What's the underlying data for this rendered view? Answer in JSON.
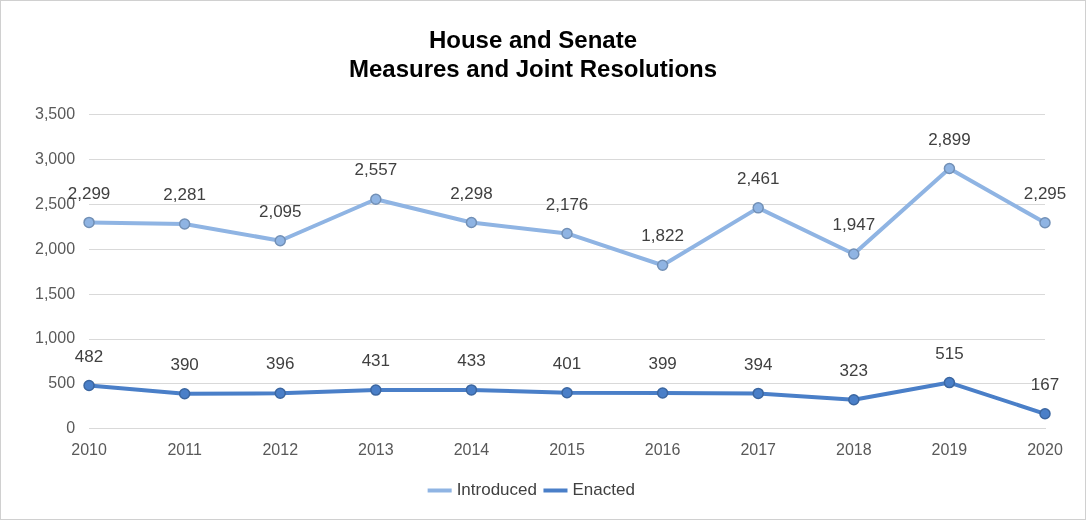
{
  "chart_data": {
    "type": "line",
    "title": "House and Senate\nMeasures and Joint Resolutions",
    "categories": [
      "2010",
      "2011",
      "2012",
      "2013",
      "2014",
      "2015",
      "2016",
      "2017",
      "2018",
      "2019",
      "2020"
    ],
    "series": [
      {
        "name": "Introduced",
        "color": "#8fb4e3",
        "values": [
          2299,
          2281,
          2095,
          2557,
          2298,
          2176,
          1822,
          2461,
          1947,
          2899,
          2295
        ],
        "value_labels": [
          "2,299",
          "2,281",
          "2,095",
          "2,557",
          "2,298",
          "2,176",
          "1,822",
          "2,461",
          "1,947",
          "2,899",
          "2,295"
        ]
      },
      {
        "name": "Enacted",
        "color": "#4a7fc8",
        "values": [
          482,
          390,
          396,
          431,
          433,
          401,
          399,
          394,
          323,
          515,
          167
        ],
        "value_labels": [
          "482",
          "390",
          "396",
          "431",
          "433",
          "401",
          "399",
          "394",
          "323",
          "515",
          "167"
        ]
      }
    ],
    "ylim": [
      0,
      3500
    ],
    "yticks": [
      0,
      500,
      {
        "value": 1000,
        "label": "1,000"
      },
      {
        "value": 1500,
        "label": "1,500"
      },
      {
        "value": 2000,
        "label": "2,000"
      },
      {
        "value": 2500,
        "label": "2,500"
      },
      {
        "value": 3000,
        "label": "3,000"
      },
      {
        "value": 3500,
        "label": "3,500"
      }
    ],
    "grid": "y",
    "legend": "bottom",
    "marker": "circle",
    "line_style": "solid"
  }
}
